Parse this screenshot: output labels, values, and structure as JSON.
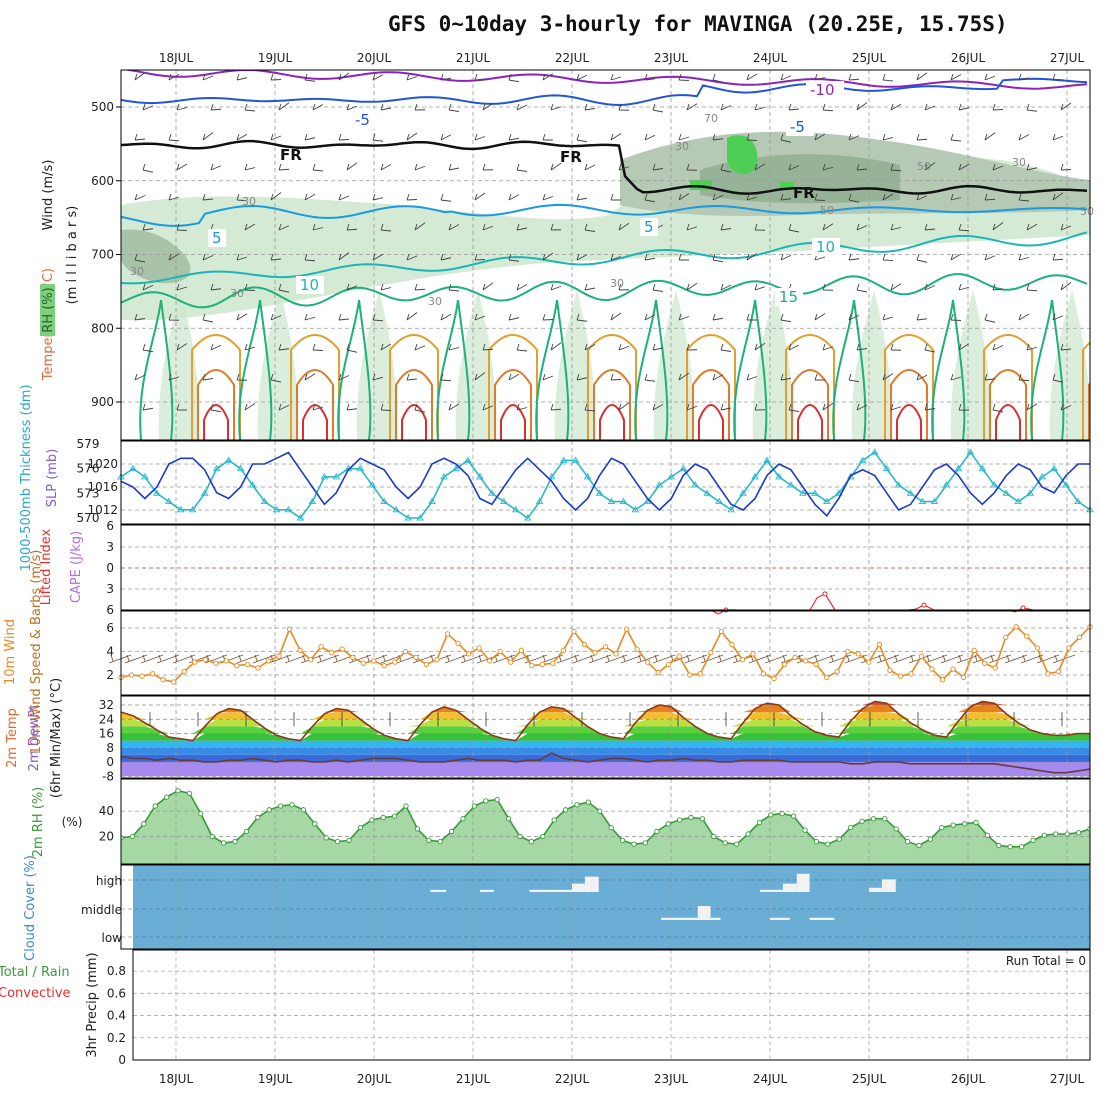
{
  "title": "GFS 0~10day 3-hourly for MAVINGA (20.25E, 15.75S)",
  "dates": [
    "18JUL",
    "19JUL",
    "20JUL",
    "21JUL",
    "22JUL",
    "23JUL",
    "24JUL",
    "25JUL",
    "26JUL",
    "27JUL"
  ],
  "colors": {
    "rh_fill": "#cfe8cf",
    "rh_fill_mid": "#b5c9b5",
    "rh_fill_high": "#8aa98a",
    "green_spot": "#4fce55",
    "fr_line": "#111111",
    "temp_m10": "#8a24b8",
    "temp_m5": "#2255d6",
    "temp_5": "#1a9ae0",
    "temp_10": "#1cb5b5",
    "temp_15": "#1cb07a",
    "temp_20": "#e0a030",
    "temp_25": "#e07a2c",
    "temp_30": "#d83030",
    "slp": "#1a3bc8",
    "thickness": "#28b8c8",
    "lifted_index": "#e03030",
    "cape": "#b070e0",
    "wind_speed": "#e88a20",
    "barb": "#7a5a3a",
    "rh2m": "#3a9a3a",
    "cloud_bg": "#6aaed6",
    "cloud_bar": "#f2f2f2"
  },
  "chart_data": [
    {
      "panel": "upper-air",
      "type": "heatmap",
      "ylabel_parts": [
        "Wind (m/s)",
        "Temperature (°C)",
        "RH (%)"
      ],
      "yaxis_label": "(m i l l i b a r s)",
      "yticks": [
        500,
        600,
        700,
        800,
        900
      ],
      "ylim": [
        950,
        450
      ],
      "freezing_label": "FR",
      "contour_labels": [
        {
          "text": "-10",
          "kind": "temp_m10"
        },
        {
          "text": "-5",
          "kind": "temp_m5"
        },
        {
          "text": "-5",
          "kind": "temp_m5"
        },
        {
          "text": "5",
          "kind": "temp_5"
        },
        {
          "text": "5",
          "kind": "temp_5"
        },
        {
          "text": "10",
          "kind": "temp_10"
        },
        {
          "text": "10",
          "kind": "temp_10"
        },
        {
          "text": "15",
          "kind": "temp_15"
        }
      ],
      "rh_labels": [
        "30",
        "30",
        "50",
        "30",
        "30",
        "30",
        "70",
        "30",
        "50",
        "30",
        "50"
      ]
    },
    {
      "panel": "pressure",
      "type": "line",
      "ylabel": "1000-500mb Thickness (dm)",
      "ylabel2": "SLP (mb)",
      "yticks_left": [
        570,
        573,
        576,
        579
      ],
      "yticks_right": [
        1012,
        1016,
        1020
      ],
      "series": [
        {
          "name": "SLP (mb)",
          "axis": "right",
          "values": [
            1017,
            1016,
            1014,
            1016,
            1020,
            1021,
            1021,
            1019,
            1015,
            1014,
            1016,
            1020,
            1020,
            1021,
            1022,
            1019,
            1016,
            1013,
            1015,
            1019,
            1021,
            1020,
            1019,
            1016,
            1014,
            1016,
            1020,
            1021,
            1020,
            1018,
            1014,
            1013,
            1016,
            1019,
            1021,
            1019,
            1017,
            1014,
            1012,
            1014,
            1018,
            1021,
            1020,
            1017,
            1014,
            1012,
            1014,
            1018,
            1020,
            1019,
            1016,
            1013,
            1012,
            1014,
            1018,
            1020,
            1019,
            1016,
            1013,
            1011,
            1014,
            1018,
            1019,
            1018,
            1015,
            1012,
            1013,
            1016,
            1019,
            1020,
            1018,
            1015,
            1013,
            1015,
            1018,
            1020,
            1019,
            1016,
            1015,
            1018,
            1020,
            1020
          ]
        },
        {
          "name": "1000-500mb Thickness (dm)",
          "axis": "left",
          "values": [
            575,
            576,
            575,
            573,
            572,
            571,
            571,
            573,
            576,
            577,
            576,
            574,
            572,
            571,
            571,
            570,
            572,
            575,
            575,
            576,
            576,
            574,
            572,
            571,
            570,
            570,
            572,
            575,
            576,
            577,
            575,
            573,
            572,
            571,
            570,
            572,
            575,
            577,
            577,
            575,
            573,
            572,
            572,
            571,
            572,
            574,
            575,
            576,
            574,
            573,
            572,
            571,
            573,
            575,
            577,
            575,
            574,
            573,
            573,
            572,
            573,
            575,
            577,
            578,
            576,
            574,
            573,
            572,
            572,
            574,
            576,
            578,
            576,
            574,
            573,
            572,
            573,
            575,
            576,
            574,
            572,
            571
          ]
        }
      ]
    },
    {
      "panel": "stability",
      "type": "line",
      "ylabel": "Lifted Index",
      "ylabel2": "CAPE (J/kg)",
      "yticks": [
        6,
        3,
        0,
        -3,
        -6
      ],
      "tick_labels": [
        "6",
        "3",
        "0",
        "3",
        "6"
      ],
      "bumps": [
        {
          "x": 5.55,
          "li": 6.0
        },
        {
          "x": 6.55,
          "li": 3.7
        },
        {
          "x": 7.55,
          "li": 5.3
        },
        {
          "x": 8.55,
          "li": 5.7
        }
      ]
    },
    {
      "panel": "wind10m",
      "type": "line",
      "ylabel": "10m Wind Speed & Barbs (m/s)",
      "yticks": [
        2,
        4,
        6
      ],
      "series": [
        {
          "name": "10m Wind Speed",
          "values": [
            1.8,
            2.0,
            1.9,
            2.1,
            1.6,
            1.4,
            2.3,
            3.1,
            3.3,
            3.0,
            3.2,
            2.8,
            2.9,
            2.6,
            3.2,
            3.6,
            5.9,
            4.1,
            3.3,
            4.4,
            3.9,
            4.2,
            3.5,
            3.0,
            3.2,
            2.8,
            3.1,
            4.0,
            3.5,
            2.9,
            3.3,
            5.5,
            4.7,
            3.8,
            4.3,
            3.2,
            4.0,
            3.1,
            4.1,
            2.8,
            2.9,
            3.0,
            4.1,
            5.7,
            4.6,
            3.9,
            4.4,
            3.8,
            5.9,
            4.2,
            3.1,
            2.2,
            2.9,
            3.6,
            2.0,
            2.1,
            3.9,
            5.7,
            4.6,
            3.3,
            3.8,
            2.1,
            1.7,
            2.9,
            3.5,
            3.2,
            2.9,
            1.8,
            2.3,
            4.0,
            3.8,
            3.1,
            4.6,
            2.4,
            1.9,
            2.1,
            3.6,
            2.5,
            1.6,
            2.5,
            1.8,
            4.1,
            3.0,
            2.6,
            5.2,
            6.1,
            5.3,
            4.3,
            2.1,
            2.3,
            4.3,
            5.2,
            6.1
          ]
        }
      ]
    },
    {
      "panel": "temperature",
      "type": "area",
      "ylabel": "2m Temp",
      "ylabel2": "2m DewPt",
      "ylabel3": "(6hr Min/Max) (°C)",
      "yticks": [
        -8,
        0,
        8,
        16,
        24,
        32
      ],
      "series": [
        {
          "name": "2m Temp",
          "values": [
            28,
            26,
            22,
            18,
            14,
            13,
            12,
            20,
            27,
            30,
            29,
            24,
            19,
            15,
            13,
            12,
            20,
            27,
            30,
            29,
            24,
            19,
            15,
            13,
            12,
            21,
            28,
            31,
            29,
            24,
            19,
            15,
            13,
            12,
            21,
            28,
            31,
            30,
            25,
            20,
            16,
            14,
            13,
            22,
            29,
            32,
            31,
            25,
            20,
            16,
            14,
            13,
            22,
            30,
            33,
            32,
            26,
            21,
            17,
            15,
            14,
            23,
            30,
            34,
            33,
            27,
            22,
            18,
            15,
            14,
            23,
            31,
            34,
            33,
            27,
            22,
            18,
            16,
            15,
            15,
            16,
            16
          ]
        },
        {
          "name": "2m DewPt",
          "values": [
            3,
            2,
            2,
            1,
            2,
            1,
            1,
            0,
            0,
            1,
            1,
            2,
            1,
            0,
            1,
            1,
            0,
            0,
            1,
            0,
            1,
            2,
            2,
            2,
            1,
            0,
            0,
            0,
            1,
            2,
            1,
            1,
            1,
            0,
            1,
            1,
            5,
            2,
            1,
            0,
            1,
            2,
            2,
            1,
            0,
            1,
            1,
            2,
            1,
            1,
            0,
            0,
            1,
            1,
            1,
            1,
            0,
            0,
            0,
            0,
            0,
            -1,
            -1,
            0,
            0,
            0,
            -1,
            -1,
            -1,
            -1,
            -1,
            -1,
            -1,
            -1,
            -2,
            -3,
            -4,
            -5,
            -6,
            -6,
            -5,
            -4
          ]
        }
      ]
    },
    {
      "panel": "rh2m",
      "type": "area",
      "ylabel": "2m RH (%)",
      "yticks": [
        20,
        40
      ],
      "series": [
        {
          "name": "2m RH",
          "values": [
            19,
            20,
            30,
            44,
            51,
            56,
            54,
            38,
            20,
            15,
            16,
            24,
            35,
            41,
            44,
            45,
            41,
            30,
            19,
            16,
            17,
            27,
            33,
            35,
            36,
            44,
            26,
            17,
            16,
            24,
            34,
            44,
            48,
            49,
            34,
            20,
            16,
            20,
            33,
            41,
            45,
            47,
            40,
            27,
            17,
            14,
            15,
            24,
            30,
            33,
            35,
            34,
            20,
            15,
            14,
            22,
            31,
            37,
            38,
            36,
            25,
            16,
            14,
            18,
            27,
            32,
            34,
            34,
            26,
            16,
            13,
            18,
            27,
            29,
            30,
            31,
            21,
            13,
            12,
            12,
            17,
            21,
            22,
            22,
            23,
            26
          ]
        }
      ]
    },
    {
      "panel": "cloud",
      "type": "bar",
      "ylabel": "Cloud Cover (%)",
      "level_labels": [
        "high",
        "middle",
        "low"
      ],
      "segments": [
        {
          "level": "high",
          "x0": 3.12,
          "x1": 3.28,
          "cover": 8
        },
        {
          "level": "high",
          "x0": 3.62,
          "x1": 3.76,
          "cover": 8
        },
        {
          "level": "high",
          "x0": 4.12,
          "x1": 4.55,
          "cover": 8
        },
        {
          "level": "high",
          "x0": 4.55,
          "x1": 4.68,
          "cover": 30
        },
        {
          "level": "high",
          "x0": 4.68,
          "x1": 4.82,
          "cover": 55
        },
        {
          "level": "high",
          "x0": 6.45,
          "x1": 6.68,
          "cover": 8
        },
        {
          "level": "high",
          "x0": 6.68,
          "x1": 6.82,
          "cover": 30
        },
        {
          "level": "high",
          "x0": 6.82,
          "x1": 6.95,
          "cover": 65
        },
        {
          "level": "high",
          "x0": 7.55,
          "x1": 7.68,
          "cover": 15
        },
        {
          "level": "high",
          "x0": 7.68,
          "x1": 7.82,
          "cover": 45
        },
        {
          "level": "middle",
          "x0": 5.45,
          "x1": 5.82,
          "cover": 8
        },
        {
          "level": "middle",
          "x0": 5.82,
          "x1": 5.95,
          "cover": 50
        },
        {
          "level": "middle",
          "x0": 5.95,
          "x1": 6.05,
          "cover": 8
        },
        {
          "level": "middle",
          "x0": 6.55,
          "x1": 6.75,
          "cover": 8
        },
        {
          "level": "middle",
          "x0": 6.95,
          "x1": 7.2,
          "cover": 8
        }
      ]
    },
    {
      "panel": "precip",
      "type": "bar",
      "ylabel": "3hr Precip (mm)",
      "ylabel_left": "Total / Rain",
      "ylabel_left2": "Convective",
      "yticks": [
        0,
        0.2,
        0.4,
        0.6,
        0.8
      ],
      "ylim": [
        0,
        0.9
      ],
      "run_total": "Run Total = 0",
      "values": []
    }
  ]
}
